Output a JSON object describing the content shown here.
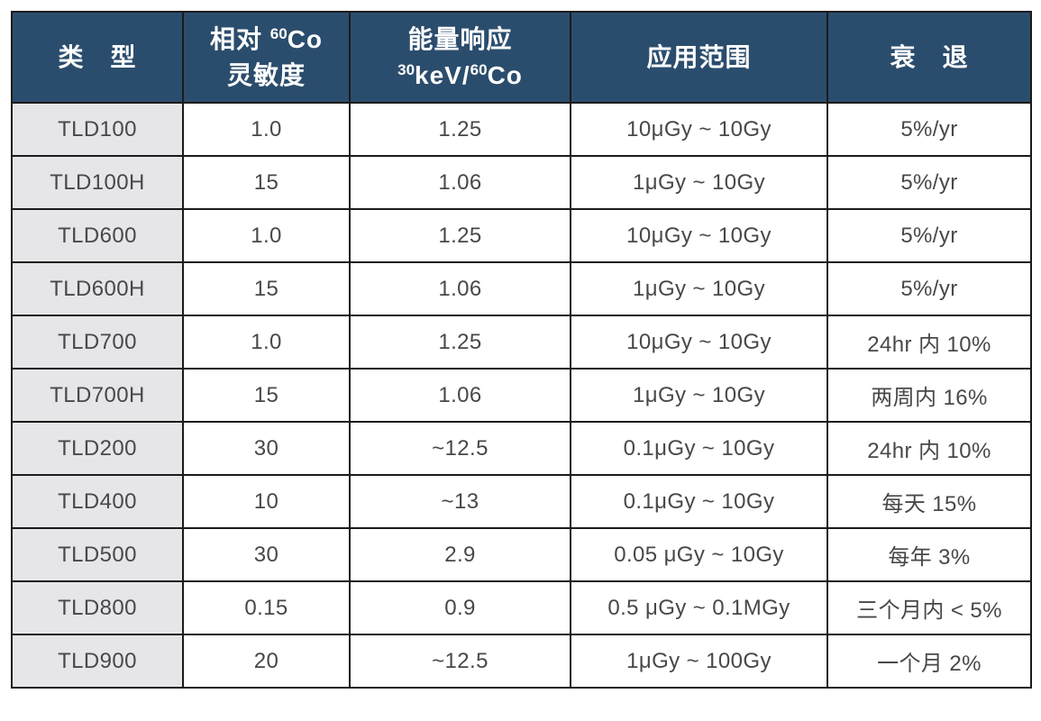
{
  "colors": {
    "header_bg": "#2b4d6d",
    "header_text": "#ffffff",
    "type_column_bg": "#e6e6e8",
    "body_text": "#48484a",
    "border": "#1b1b1b",
    "page_bg": "#ffffff"
  },
  "table": {
    "header": {
      "type_label": "类　型",
      "sensitivity": {
        "line1_prefix": "相对 ",
        "line1_sup": "60",
        "line1_suffix": "Co",
        "line2": "灵敏度"
      },
      "energy": {
        "line1": "能量响应",
        "line2_sup1": "30",
        "line2_mid": "keV/",
        "line2_sup2": "60",
        "line2_suffix": "Co"
      },
      "range_label": "应用范围",
      "fading_label": "衰　退"
    },
    "rows": [
      {
        "type": "TLD100",
        "sensitivity": "1.0",
        "energy": "1.25",
        "range": "10μGy ~ 10Gy",
        "fading": "5%/yr"
      },
      {
        "type": "TLD100H",
        "sensitivity": "15",
        "energy": "1.06",
        "range": "1μGy ~ 10Gy",
        "fading": "5%/yr"
      },
      {
        "type": "TLD600",
        "sensitivity": "1.0",
        "energy": "1.25",
        "range": "10μGy ~ 10Gy",
        "fading": "5%/yr"
      },
      {
        "type": "TLD600H",
        "sensitivity": "15",
        "energy": "1.06",
        "range": "1μGy ~ 10Gy",
        "fading": "5%/yr"
      },
      {
        "type": "TLD700",
        "sensitivity": "1.0",
        "energy": "1.25",
        "range": "10μGy ~ 10Gy",
        "fading": "24hr 内 10%"
      },
      {
        "type": "TLD700H",
        "sensitivity": "15",
        "energy": "1.06",
        "range": "1μGy ~ 10Gy",
        "fading": "两周内 16%"
      },
      {
        "type": "TLD200",
        "sensitivity": "30",
        "energy": "~12.5",
        "range": "0.1μGy ~ 10Gy",
        "fading": "24hr 内 10%"
      },
      {
        "type": "TLD400",
        "sensitivity": "10",
        "energy": "~13",
        "range": "0.1μGy ~ 10Gy",
        "fading": "每天 15%"
      },
      {
        "type": "TLD500",
        "sensitivity": "30",
        "energy": "2.9",
        "range": "0.05 μGy ~ 10Gy",
        "fading": "每年 3%"
      },
      {
        "type": "TLD800",
        "sensitivity": "0.15",
        "energy": "0.9",
        "range": "0.5 μGy ~ 0.1MGy",
        "fading": "三个月内 < 5%"
      },
      {
        "type": "TLD900",
        "sensitivity": "20",
        "energy": "~12.5",
        "range": "1μGy ~ 100Gy",
        "fading": "一个月 2%"
      }
    ]
  },
  "chart_data": {
    "type": "table",
    "columns": [
      "类型",
      "相对 60Co 灵敏度",
      "能量响应 30keV/60Co",
      "应用范围",
      "衰退"
    ],
    "rows": [
      [
        "TLD100",
        "1.0",
        "1.25",
        "10μGy ~ 10Gy",
        "5%/yr"
      ],
      [
        "TLD100H",
        "15",
        "1.06",
        "1μGy ~ 10Gy",
        "5%/yr"
      ],
      [
        "TLD600",
        "1.0",
        "1.25",
        "10μGy ~ 10Gy",
        "5%/yr"
      ],
      [
        "TLD600H",
        "15",
        "1.06",
        "1μGy ~ 10Gy",
        "5%/yr"
      ],
      [
        "TLD700",
        "1.0",
        "1.25",
        "10μGy ~ 10Gy",
        "24hr 内 10%"
      ],
      [
        "TLD700H",
        "15",
        "1.06",
        "1μGy ~ 10Gy",
        "两周内 16%"
      ],
      [
        "TLD200",
        "30",
        "~12.5",
        "0.1μGy ~ 10Gy",
        "24hr 内 10%"
      ],
      [
        "TLD400",
        "10",
        "~13",
        "0.1μGy ~ 10Gy",
        "每天 15%"
      ],
      [
        "TLD500",
        "30",
        "2.9",
        "0.05 μGy ~ 10Gy",
        "每年 3%"
      ],
      [
        "TLD800",
        "0.15",
        "0.9",
        "0.5 μGy ~ 0.1MGy",
        "三个月内 < 5%"
      ],
      [
        "TLD900",
        "20",
        "~12.5",
        "1μGy ~ 100Gy",
        "一个月 2%"
      ]
    ]
  }
}
